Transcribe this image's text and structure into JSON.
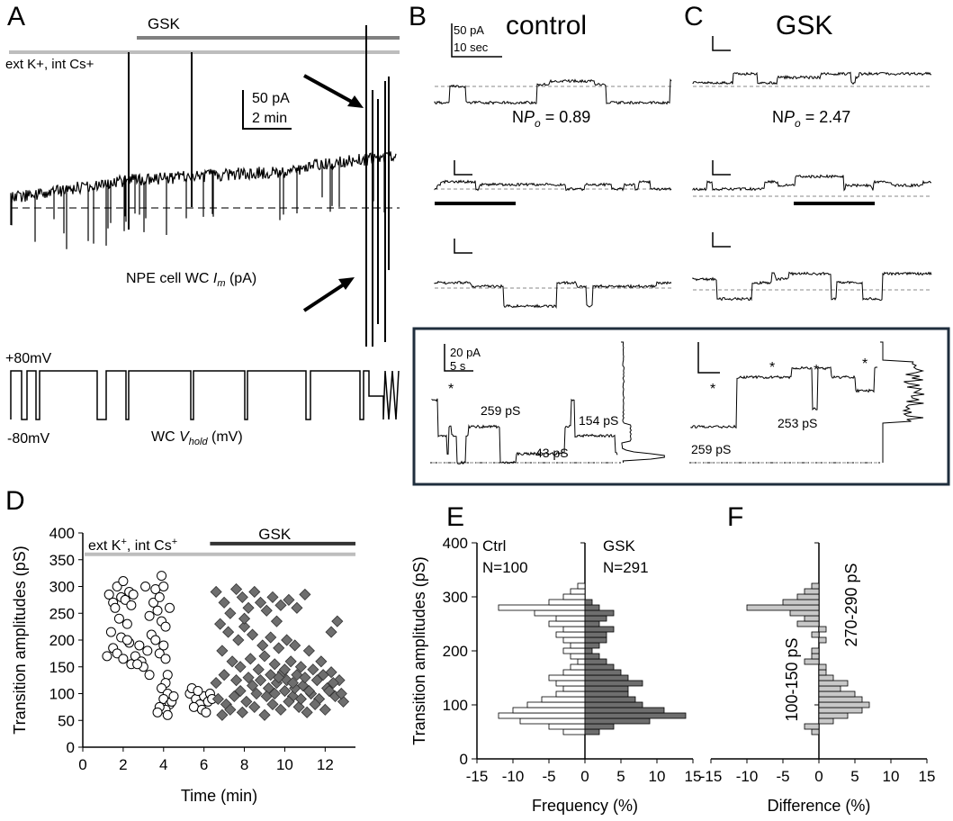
{
  "colors": {
    "ink": "#000000",
    "gsk_bar": "#808080",
    "k_bar": "#bdbdbd",
    "ctrl_fill": "#ffffff",
    "gsk_fill": "#6e6e6e",
    "diff_fill": "#c8c8c8",
    "inset_border": "#1f2e3d"
  },
  "panelA": {
    "letter": "A",
    "gsk_label": "GSK",
    "ext_label": "ext K+, int Cs+",
    "scale_pa": "50 pA",
    "scale_min": "2 min",
    "im_label": "NPE cell WC ",
    "im_sym": "I",
    "im_sub": "m",
    "im_unit": " (pA)",
    "v_top": "+80mV",
    "v_bottom": "-80mV",
    "vhold_label": "WC ",
    "vhold_sym": "V",
    "vhold_sub": "hold",
    "vhold_unit": " (mV)"
  },
  "panelB": {
    "letter": "B",
    "title": "control",
    "scale_pa": "50 pA",
    "scale_sec": "10 sec",
    "npo_prefix": "N",
    "npo_sym": "P",
    "npo_sub": "o",
    "npo_value": " = 0.89"
  },
  "panelC": {
    "letter": "C",
    "title": "GSK",
    "npo_prefix": "N",
    "npo_sym": "P",
    "npo_sub": "o",
    "npo_value": " = 2.47"
  },
  "inset": {
    "scale_pa": "20 pA",
    "scale_s": "5 s",
    "left_labels": [
      "259 pS",
      "43 pS",
      "154 pS"
    ],
    "right_labels": [
      "253 pS",
      "259 pS"
    ],
    "star": "*"
  },
  "chart_data": [
    {
      "panel": "D",
      "type": "scatter",
      "xlabel": "Time (min)",
      "ylabel": "Transition amplitudes (pS)",
      "xlim": [
        0,
        13.5
      ],
      "ylim": [
        0,
        400
      ],
      "xticks": [
        0,
        2,
        4,
        6,
        8,
        10,
        12
      ],
      "yticks": [
        0,
        50,
        100,
        150,
        200,
        250,
        300,
        350,
        400
      ],
      "annot_ext": "ext K",
      "annot_ext_sup": "+",
      "annot_int": ", int Cs",
      "annot_int_sup": "+",
      "annot_gsk": "GSK",
      "series": [
        {
          "name": "control",
          "marker": "circle",
          "points": [
            [
              1.3,
              285
            ],
            [
              1.5,
              270
            ],
            [
              1.7,
              300
            ],
            [
              1.9,
              280
            ],
            [
              2.0,
              310
            ],
            [
              2.1,
              275
            ],
            [
              2.3,
              290
            ],
            [
              2.4,
              265
            ],
            [
              1.6,
              260
            ],
            [
              1.8,
              240
            ],
            [
              2.2,
              230
            ],
            [
              1.4,
              215
            ],
            [
              1.9,
              205
            ],
            [
              2.3,
              195
            ],
            [
              1.5,
              185
            ],
            [
              1.7,
              175
            ],
            [
              2.0,
              165
            ],
            [
              2.4,
              155
            ],
            [
              2.6,
              170
            ],
            [
              2.8,
              190
            ],
            [
              2.9,
              160
            ],
            [
              3.0,
              150
            ],
            [
              3.2,
              180
            ],
            [
              3.4,
              210
            ],
            [
              3.3,
              245
            ],
            [
              3.5,
              270
            ],
            [
              3.6,
              295
            ],
            [
              3.8,
              280
            ],
            [
              4.0,
              300
            ],
            [
              3.7,
              255
            ],
            [
              3.9,
              235
            ],
            [
              4.1,
              225
            ],
            [
              3.6,
              200
            ],
            [
              4.0,
              190
            ],
            [
              3.8,
              175
            ],
            [
              4.1,
              165
            ],
            [
              4.2,
              135
            ],
            [
              4.1,
              120
            ],
            [
              3.9,
              110
            ],
            [
              4.2,
              100
            ],
            [
              4.0,
              90
            ],
            [
              4.3,
              80
            ],
            [
              4.1,
              70
            ],
            [
              3.8,
              75
            ],
            [
              4.4,
              85
            ],
            [
              4.2,
              60
            ],
            [
              4.5,
              95
            ],
            [
              3.7,
              65
            ],
            [
              5.3,
              100
            ],
            [
              5.6,
              90
            ],
            [
              5.8,
              80
            ],
            [
              6.0,
              95
            ],
            [
              6.2,
              85
            ],
            [
              5.5,
              75
            ],
            [
              5.9,
              70
            ],
            [
              6.3,
              100
            ],
            [
              5.4,
              110
            ],
            [
              6.1,
              65
            ],
            [
              3.3,
              135
            ],
            [
              2.2,
              200
            ],
            [
              1.2,
              170
            ],
            [
              2.5,
              285
            ],
            [
              3.1,
              300
            ],
            [
              3.9,
              320
            ],
            [
              4.3,
              260
            ],
            [
              5.7,
              105
            ],
            [
              6.4,
              90
            ],
            [
              2.7,
              155
            ]
          ]
        },
        {
          "name": "GSK",
          "marker": "diamond",
          "points": [
            [
              6.6,
              290
            ],
            [
              7.0,
              270
            ],
            [
              7.3,
              250
            ],
            [
              7.6,
              295
            ],
            [
              7.9,
              280
            ],
            [
              8.2,
              260
            ],
            [
              8.5,
              290
            ],
            [
              8.8,
              270
            ],
            [
              9.1,
              255
            ],
            [
              9.4,
              280
            ],
            [
              9.8,
              265
            ],
            [
              10.2,
              275
            ],
            [
              10.6,
              260
            ],
            [
              11.0,
              285
            ],
            [
              6.8,
              230
            ],
            [
              7.2,
              215
            ],
            [
              7.7,
              200
            ],
            [
              8.0,
              225
            ],
            [
              8.4,
              210
            ],
            [
              8.9,
              190
            ],
            [
              9.3,
              205
            ],
            [
              9.7,
              185
            ],
            [
              10.1,
              200
            ],
            [
              10.5,
              190
            ],
            [
              11.2,
              180
            ],
            [
              6.9,
              180
            ],
            [
              7.4,
              160
            ],
            [
              7.8,
              150
            ],
            [
              8.3,
              165
            ],
            [
              8.7,
              145
            ],
            [
              9.0,
              170
            ],
            [
              9.5,
              155
            ],
            [
              9.9,
              140
            ],
            [
              10.3,
              160
            ],
            [
              10.8,
              150
            ],
            [
              11.4,
              145
            ],
            [
              11.8,
              160
            ],
            [
              12.3,
              140
            ],
            [
              12.7,
              125
            ],
            [
              6.7,
              90
            ],
            [
              7.1,
              80
            ],
            [
              7.5,
              95
            ],
            [
              8.1,
              85
            ],
            [
              8.6,
              100
            ],
            [
              9.2,
              110
            ],
            [
              9.6,
              120
            ],
            [
              10.0,
              105
            ],
            [
              10.4,
              95
            ],
            [
              10.9,
              115
            ],
            [
              11.3,
              100
            ],
            [
              11.7,
              90
            ],
            [
              12.1,
              110
            ],
            [
              12.5,
              95
            ],
            [
              12.9,
              85
            ],
            [
              7.3,
              70
            ],
            [
              7.9,
              65
            ],
            [
              8.5,
              75
            ],
            [
              9.0,
              60
            ],
            [
              9.4,
              80
            ],
            [
              9.8,
              70
            ],
            [
              10.2,
              85
            ],
            [
              10.7,
              75
            ],
            [
              11.1,
              65
            ],
            [
              11.5,
              80
            ],
            [
              12.0,
              70
            ],
            [
              12.4,
              120
            ],
            [
              12.8,
              100
            ],
            [
              6.6,
              120
            ],
            [
              7.0,
              135
            ],
            [
              7.6,
              125
            ],
            [
              8.2,
              130
            ],
            [
              8.8,
              125
            ],
            [
              9.3,
              135
            ],
            [
              9.7,
              130
            ],
            [
              10.1,
              125
            ],
            [
              10.6,
              135
            ],
            [
              11.0,
              130
            ],
            [
              11.6,
              125
            ],
            [
              12.2,
              105
            ],
            [
              12.6,
              235
            ],
            [
              12.3,
              215
            ],
            [
              8.4,
              115
            ],
            [
              9.1,
              95
            ],
            [
              10.5,
              110
            ],
            [
              10.8,
              90
            ],
            [
              11.9,
              135
            ],
            [
              9.5,
              100
            ],
            [
              10.0,
              145
            ],
            [
              10.4,
              120
            ],
            [
              11.2,
              105
            ],
            [
              7.8,
              105
            ],
            [
              8.0,
              240
            ],
            [
              9.6,
              235
            ],
            [
              6.9,
              60
            ]
          ]
        }
      ]
    },
    {
      "panel": "E",
      "type": "bar",
      "orientation": "horizontal",
      "xlabel": "Frequency (%)",
      "ylabel": "Transition amplitudes (pS)",
      "xlim": [
        -15,
        15
      ],
      "ylim": [
        0,
        400
      ],
      "xticks": [
        -15,
        -10,
        -5,
        0,
        5,
        10,
        15
      ],
      "xtick_labels": [
        "-15",
        "-10",
        "-5",
        "0",
        "5",
        "10",
        "15"
      ],
      "yticks": [
        0,
        100,
        200,
        300,
        400
      ],
      "bin_width": 10,
      "ctrl_label": "Ctrl",
      "ctrl_n": "N=100",
      "gsk_label": "GSK",
      "gsk_n": "N=291",
      "bins": [
        50,
        60,
        70,
        80,
        90,
        100,
        110,
        120,
        130,
        140,
        150,
        160,
        170,
        180,
        190,
        200,
        210,
        220,
        230,
        240,
        250,
        260,
        270,
        280,
        290,
        300,
        310,
        320
      ],
      "series": [
        {
          "name": "Ctrl",
          "values": [
            -3,
            -5,
            -9,
            -12,
            -10,
            -8,
            -6,
            -4,
            -3,
            -4,
            -5,
            -3,
            -2,
            -1,
            -2,
            -3,
            -2,
            -3,
            -4,
            -3,
            -5,
            -4,
            -7,
            -12,
            -5,
            -3,
            -2,
            -1
          ]
        },
        {
          "name": "GSK",
          "values": [
            2,
            4,
            9,
            14,
            11,
            8,
            7,
            6,
            6,
            8,
            6,
            5,
            4,
            3,
            2,
            1,
            2,
            3,
            3,
            4,
            2,
            3,
            4,
            2,
            1,
            0,
            0,
            0
          ]
        }
      ]
    },
    {
      "panel": "F",
      "type": "bar",
      "orientation": "horizontal",
      "xlabel": "Difference (%)",
      "ylabel": "",
      "xlim": [
        -15,
        15
      ],
      "ylim": [
        0,
        400
      ],
      "xticks": [
        -15,
        -10,
        -5,
        0,
        5,
        10,
        15
      ],
      "xtick_labels": [
        "-15",
        "-10",
        "-5",
        "0",
        "5",
        "10",
        "15"
      ],
      "bin_width": 10,
      "annot_low": "100-150 pS",
      "annot_high": "270-290 pS",
      "bins": [
        50,
        60,
        70,
        80,
        90,
        100,
        110,
        120,
        130,
        140,
        150,
        160,
        170,
        180,
        190,
        200,
        210,
        220,
        230,
        240,
        250,
        260,
        270,
        280,
        290,
        300,
        310,
        320
      ],
      "values": [
        -1,
        -2,
        2,
        4,
        6,
        7,
        6,
        5,
        3,
        4,
        2,
        1,
        1,
        -2,
        -1,
        -1,
        0,
        1,
        -1,
        1,
        -3,
        -2,
        -4,
        -10,
        -5,
        -3,
        -2,
        -1
      ]
    }
  ]
}
